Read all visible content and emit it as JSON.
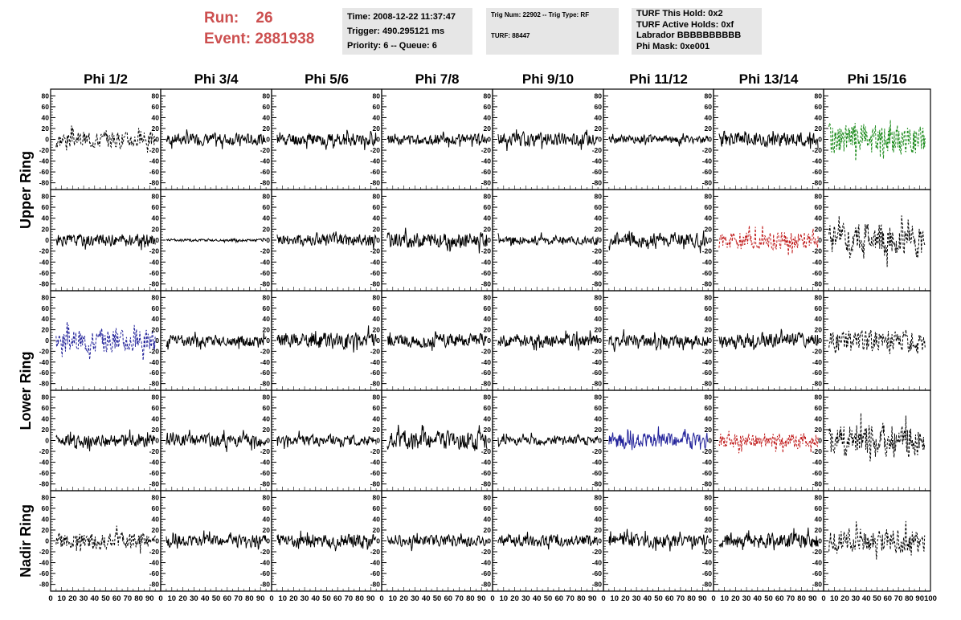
{
  "header": {
    "run_label": "Run:",
    "run_value": "26",
    "event_label": "Event:",
    "event_value": "2881938",
    "time": "Time: 2008-12-22 11:37:47",
    "trigger": "Trigger: 490.295121 ms",
    "priority": "Priority: 6 -- Queue: 6",
    "trig_line": "Trig Num: 22902 -- Trig Type: RF",
    "turf": "TURF: 88447",
    "turf_hold": "TURF This Hold: 0x2",
    "turf_active": "TURF Active Holds: 0xf",
    "labrador": "Labrador BBBBBBBBBB",
    "phi_mask": "Phi Mask: 0xe001"
  },
  "colors": {
    "run_text": "#cc4f4f",
    "info_bg": "#e6e6e6",
    "trace_black": "#000000",
    "trace_green": "#1a8a1a",
    "trace_red": "#c01818",
    "trace_blue": "#22229a"
  },
  "chart_data": {
    "type": "line",
    "columns": [
      "Phi 1/2",
      "Phi 3/4",
      "Phi 5/6",
      "Phi 7/8",
      "Phi 9/10",
      "Phi 11/12",
      "Phi 13/14",
      "Phi 15/16"
    ],
    "ring_labels": [
      "Upper Ring",
      "Lower Ring",
      "Nadir Ring"
    ],
    "x_ticks": [
      0,
      10,
      20,
      30,
      40,
      50,
      60,
      70,
      80,
      90
    ],
    "x_tick_labels_row": [
      "0",
      "10",
      "20",
      "30",
      "40",
      "50",
      "60",
      "70",
      "80",
      "90",
      "100"
    ],
    "y_ticks": [
      "80",
      "60",
      "40",
      "20",
      "0",
      "-20",
      "-40",
      "-60",
      "-80"
    ],
    "xlim": [
      0,
      100
    ],
    "ylim": [
      -85,
      85
    ],
    "rows": [
      [
        {
          "style": "dash",
          "color": "black",
          "amp": 18,
          "seed": 3
        },
        {
          "style": "solid",
          "color": "black",
          "amp": 13,
          "seed": 7
        },
        {
          "style": "solid",
          "color": "black",
          "amp": 14,
          "seed": 11
        },
        {
          "style": "solid",
          "color": "black",
          "amp": 11,
          "seed": 13
        },
        {
          "style": "solid",
          "color": "black",
          "amp": 15,
          "seed": 17
        },
        {
          "style": "solid",
          "color": "black",
          "amp": 9,
          "seed": 19
        },
        {
          "style": "solid",
          "color": "black",
          "amp": 16,
          "seed": 23
        },
        {
          "style": "dash",
          "color": "green",
          "amp": 34,
          "seed": 29
        }
      ],
      [
        {
          "style": "solid",
          "color": "black",
          "amp": 13,
          "seed": 31
        },
        {
          "style": "solid",
          "color": "black",
          "amp": 3,
          "seed": 37
        },
        {
          "style": "solid",
          "color": "black",
          "amp": 14,
          "seed": 41
        },
        {
          "style": "solid",
          "color": "black",
          "amp": 17,
          "seed": 43
        },
        {
          "style": "solid",
          "color": "black",
          "amp": 9,
          "seed": 47
        },
        {
          "style": "solid",
          "color": "black",
          "amp": 15,
          "seed": 53
        },
        {
          "style": "dash",
          "color": "red",
          "amp": 20,
          "seed": 59
        },
        {
          "style": "dash",
          "color": "black",
          "amp": 34,
          "seed": 61
        }
      ],
      [
        {
          "style": "dash",
          "color": "blue",
          "amp": 26,
          "seed": 67
        },
        {
          "style": "solid",
          "color": "black",
          "amp": 13,
          "seed": 71
        },
        {
          "style": "solid",
          "color": "black",
          "amp": 18,
          "seed": 73
        },
        {
          "style": "solid",
          "color": "black",
          "amp": 15,
          "seed": 79
        },
        {
          "style": "solid",
          "color": "black",
          "amp": 14,
          "seed": 83
        },
        {
          "style": "solid",
          "color": "black",
          "amp": 13,
          "seed": 89
        },
        {
          "style": "solid",
          "color": "black",
          "amp": 17,
          "seed": 97
        },
        {
          "style": "dash",
          "color": "black",
          "amp": 24,
          "seed": 101
        }
      ],
      [
        {
          "style": "solid",
          "color": "black",
          "amp": 14,
          "seed": 103
        },
        {
          "style": "solid",
          "color": "black",
          "amp": 14,
          "seed": 107
        },
        {
          "style": "solid",
          "color": "black",
          "amp": 12,
          "seed": 109
        },
        {
          "style": "solid",
          "color": "black",
          "amp": 20,
          "seed": 113
        },
        {
          "style": "solid",
          "color": "black",
          "amp": 10,
          "seed": 127
        },
        {
          "style": "solid",
          "color": "blue",
          "amp": 17,
          "seed": 131
        },
        {
          "style": "dash",
          "color": "red",
          "amp": 17,
          "seed": 137
        },
        {
          "style": "dash",
          "color": "black",
          "amp": 36,
          "seed": 139
        }
      ],
      [
        {
          "style": "dash",
          "color": "black",
          "amp": 18,
          "seed": 149
        },
        {
          "style": "solid",
          "color": "black",
          "amp": 13,
          "seed": 151
        },
        {
          "style": "solid",
          "color": "black",
          "amp": 15,
          "seed": 157
        },
        {
          "style": "solid",
          "color": "black",
          "amp": 12,
          "seed": 163
        },
        {
          "style": "solid",
          "color": "black",
          "amp": 13,
          "seed": 167
        },
        {
          "style": "solid",
          "color": "black",
          "amp": 14,
          "seed": 173
        },
        {
          "style": "solid",
          "color": "black",
          "amp": 18,
          "seed": 179
        },
        {
          "style": "dash",
          "color": "black",
          "amp": 26,
          "seed": 181
        }
      ]
    ]
  }
}
